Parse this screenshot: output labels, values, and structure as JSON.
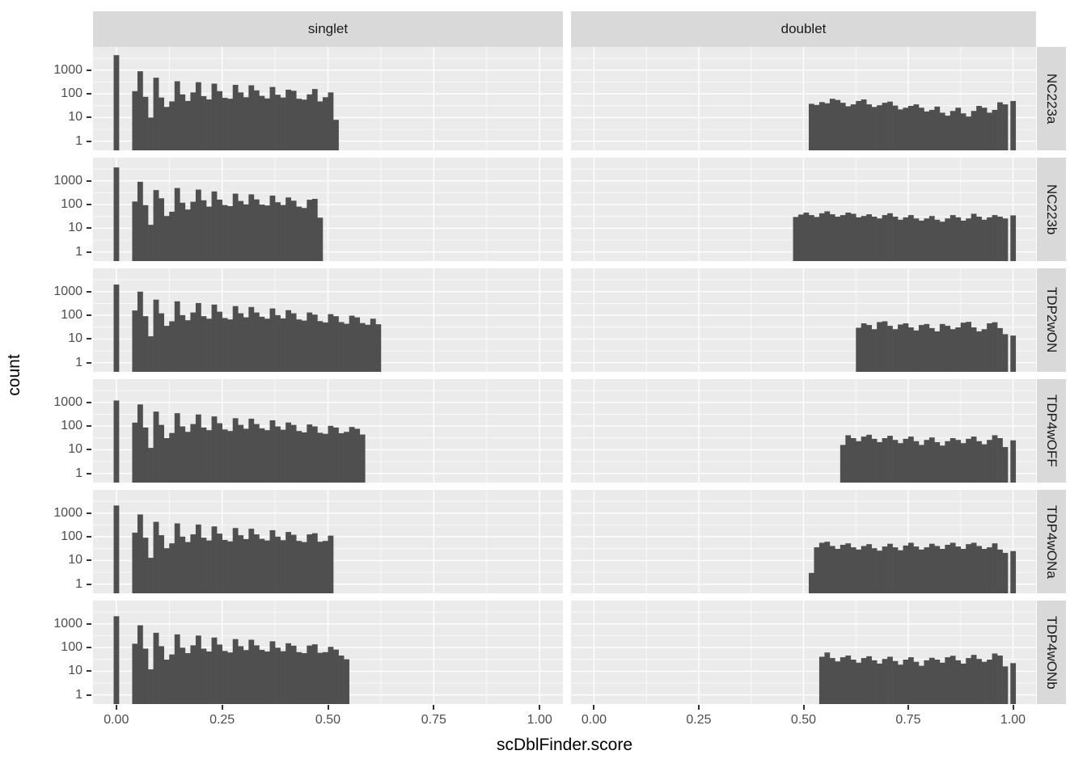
{
  "chart_data": {
    "type": "bar",
    "subtype": "faceted-log-histogram",
    "x_axis": {
      "title": "scDblFinder.score",
      "ticks": [
        0,
        0.25,
        0.5,
        0.75,
        1.0
      ],
      "tick_labels": [
        "0.00",
        "0.25",
        "0.50",
        "0.75",
        "1.00"
      ],
      "domain": [
        -0.055,
        1.055
      ]
    },
    "y_axis": {
      "title": "count",
      "scale": "log10",
      "ticks": [
        1000,
        100,
        10,
        1
      ],
      "tick_labels": [
        "1000",
        "100",
        "10",
        "1"
      ]
    },
    "facet_cols": [
      "singlet",
      "doublet"
    ],
    "facet_rows": [
      "NC223a",
      "NC223b",
      "TDP2wON",
      "TDP4wOFF",
      "TDP4wONa",
      "TDP4wONb"
    ],
    "bin_width": 0.0125,
    "grid": "on",
    "legend": "none",
    "panels": [
      {
        "row": "NC223a",
        "col": "singlet",
        "spike": {
          "x": 0,
          "count": 4300
        },
        "bins_start": 0.0375,
        "counts": [
          130,
          900,
          75,
          10,
          480,
          70,
          28,
          48,
          340,
          95,
          50,
          115,
          310,
          80,
          58,
          270,
          130,
          68,
          62,
          240,
          115,
          72,
          230,
          140,
          82,
          64,
          195,
          92,
          70,
          150,
          135,
          62,
          57,
          95,
          160,
          48,
          72,
          115,
          8
        ]
      },
      {
        "row": "NC223a",
        "col": "doublet",
        "spike": {
          "x": 1,
          "count": 50
        },
        "bins_start": 0.5125,
        "counts": [
          38,
          34,
          45,
          40,
          62,
          55,
          42,
          30,
          36,
          50,
          58,
          36,
          28,
          33,
          42,
          47,
          32,
          22,
          26,
          31,
          36,
          26,
          18,
          21,
          29,
          16,
          12,
          19,
          26,
          15,
          11,
          19,
          31,
          26,
          16,
          21,
          44,
          36
        ]
      },
      {
        "row": "NC223b",
        "col": "singlet",
        "spike": {
          "x": 0,
          "count": 3700
        },
        "bins_start": 0.0375,
        "counts": [
          135,
          920,
          95,
          14,
          410,
          185,
          33,
          50,
          500,
          120,
          62,
          132,
          430,
          152,
          82,
          360,
          162,
          96,
          86,
          290,
          142,
          102,
          270,
          165,
          100,
          92,
          240,
          126,
          96,
          200,
          146,
          82,
          72,
          160,
          175,
          28
        ]
      },
      {
        "row": "NC223b",
        "col": "doublet",
        "spike": {
          "x": 1,
          "count": 35
        },
        "bins_start": 0.475,
        "counts": [
          30,
          38,
          46,
          36,
          30,
          43,
          52,
          39,
          31,
          36,
          46,
          41,
          29,
          33,
          39,
          31,
          26,
          36,
          43,
          31,
          23,
          29,
          36,
          26,
          21,
          26,
          33,
          23,
          19,
          26,
          36,
          29,
          21,
          26,
          41,
          31,
          23,
          29,
          36,
          31,
          26
        ]
      },
      {
        "row": "TDP2wON",
        "col": "singlet",
        "spike": {
          "x": 0,
          "count": 2000
        },
        "bins_start": 0.0375,
        "counts": [
          160,
          1000,
          92,
          13,
          460,
          122,
          36,
          56,
          390,
          102,
          62,
          132,
          330,
          92,
          72,
          285,
          142,
          77,
          67,
          245,
          122,
          82,
          225,
          132,
          87,
          72,
          195,
          102,
          74,
          165,
          122,
          67,
          60,
          132,
          107,
          57,
          50,
          112,
          92,
          52,
          44,
          97,
          82,
          47,
          40,
          72,
          42
        ]
      },
      {
        "row": "TDP2wON",
        "col": "doublet",
        "spike": {
          "x": 1,
          "count": 14
        },
        "bins_start": 0.625,
        "counts": [
          30,
          46,
          39,
          26,
          52,
          56,
          36,
          26,
          41,
          46,
          31,
          23,
          39,
          43,
          29,
          21,
          43,
          36,
          26,
          31,
          49,
          53,
          31,
          21,
          26,
          46,
          51,
          29,
          16
        ]
      },
      {
        "row": "TDP4wOFF",
        "col": "singlet",
        "spike": {
          "x": 0,
          "count": 1200
        },
        "bins_start": 0.0375,
        "counts": [
          140,
          820,
          87,
          12,
          410,
          112,
          31,
          51,
          350,
          97,
          57,
          122,
          310,
          87,
          67,
          255,
          132,
          72,
          62,
          215,
          112,
          77,
          205,
          122,
          80,
          67,
          175,
          97,
          70,
          142,
          112,
          62,
          54,
          117,
          97,
          52,
          47,
          102,
          87,
          50,
          57,
          92,
          77,
          44
        ]
      },
      {
        "row": "TDP4wOFF",
        "col": "doublet",
        "spike": {
          "x": 1,
          "count": 25
        },
        "bins_start": 0.5875,
        "counts": [
          16,
          41,
          31,
          23,
          36,
          43,
          29,
          21,
          31,
          39,
          26,
          19,
          29,
          36,
          23,
          16,
          26,
          33,
          21,
          15,
          23,
          31,
          26,
          19,
          29,
          36,
          23,
          17,
          26,
          41,
          31,
          13
        ]
      },
      {
        "row": "TDP4wONa",
        "col": "singlet",
        "spike": {
          "x": 0,
          "count": 2100
        },
        "bins_start": 0.0375,
        "counts": [
          150,
          880,
          92,
          13,
          430,
          117,
          33,
          53,
          370,
          102,
          60,
          127,
          330,
          92,
          70,
          275,
          137,
          74,
          64,
          235,
          117,
          80,
          220,
          127,
          82,
          70,
          190,
          102,
          72,
          160,
          122,
          67,
          60,
          127,
          142,
          62,
          67,
          112
        ]
      },
      {
        "row": "TDP4wONa",
        "col": "doublet",
        "spike": {
          "x": 1,
          "count": 25
        },
        "bins_start": 0.5125,
        "counts": [
          3,
          36,
          56,
          62,
          41,
          31,
          46,
          53,
          36,
          29,
          41,
          49,
          33,
          26,
          39,
          51,
          36,
          27,
          43,
          56,
          39,
          29,
          36,
          51,
          41,
          31,
          46,
          56,
          39,
          31,
          49,
          56,
          41,
          31,
          36,
          53,
          29,
          21
        ]
      },
      {
        "row": "TDP4wONb",
        "col": "singlet",
        "spike": {
          "x": 0,
          "count": 2100
        },
        "bins_start": 0.0375,
        "counts": [
          145,
          870,
          90,
          12,
          420,
          114,
          31,
          51,
          360,
          99,
          58,
          124,
          320,
          90,
          68,
          265,
          134,
          72,
          62,
          228,
          114,
          78,
          214,
          124,
          80,
          68,
          184,
          99,
          70,
          152,
          120,
          64,
          58,
          122,
          137,
          60,
          64,
          107,
          82,
          46,
          32
        ]
      },
      {
        "row": "TDP4wONb",
        "col": "doublet",
        "spike": {
          "x": 1,
          "count": 22
        },
        "bins_start": 0.5375,
        "counts": [
          41,
          62,
          36,
          26,
          39,
          46,
          31,
          23,
          36,
          43,
          29,
          21,
          33,
          41,
          27,
          19,
          31,
          39,
          25,
          17,
          29,
          37,
          31,
          23,
          39,
          45,
          29,
          21,
          36,
          49,
          33,
          25,
          31,
          56,
          46,
          16
        ]
      }
    ],
    "colors": {
      "bar": "#4F4F4F",
      "panel_bg": "#EBEBEB",
      "strip_bg": "#D9D9D9",
      "gridline": "#FFFFFF",
      "axis_text": "#4D4D4D",
      "title_text": "#000000",
      "tick_mark": "#333333",
      "background": "#FFFFFF"
    }
  }
}
